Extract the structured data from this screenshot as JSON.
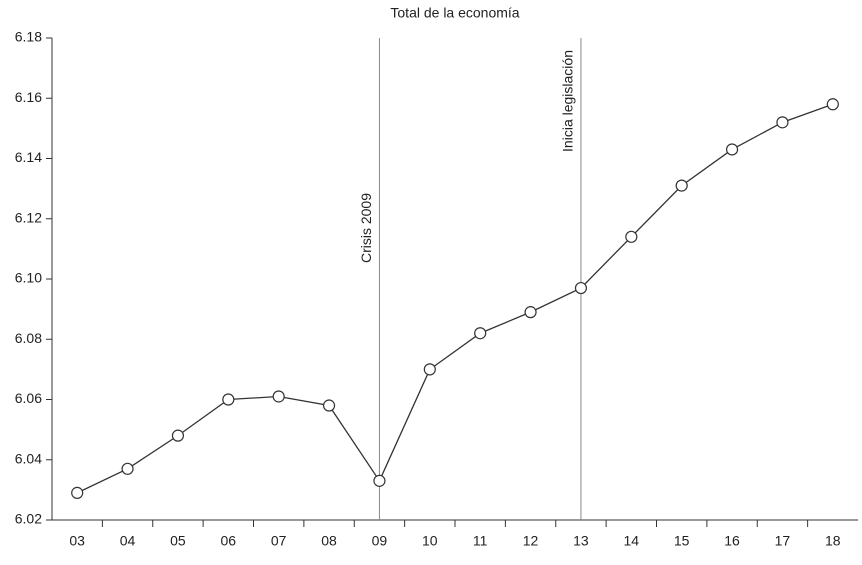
{
  "chart_data": {
    "type": "line",
    "title": "Total de la economía",
    "categories": [
      "03",
      "04",
      "05",
      "06",
      "07",
      "08",
      "09",
      "10",
      "11",
      "12",
      "13",
      "14",
      "15",
      "16",
      "17",
      "18"
    ],
    "series": [
      {
        "name": "Total de la economía",
        "color": "#333333",
        "values": [
          6.029,
          6.037,
          6.048,
          6.06,
          6.061,
          6.058,
          6.033,
          6.07,
          6.082,
          6.089,
          6.097,
          6.114,
          6.131,
          6.143,
          6.152,
          6.158
        ]
      }
    ],
    "ylim": [
      6.02,
      6.18
    ],
    "yticks": [
      6.02,
      6.04,
      6.06,
      6.08,
      {
        "value": 6.1,
        "label": "6.10"
      },
      6.12,
      6.14,
      6.16,
      6.18
    ],
    "annotations": [
      {
        "category": "09",
        "label": "Crisis 2009"
      },
      {
        "category": "13",
        "label": "Inicia legislación"
      }
    ],
    "grid": false
  }
}
